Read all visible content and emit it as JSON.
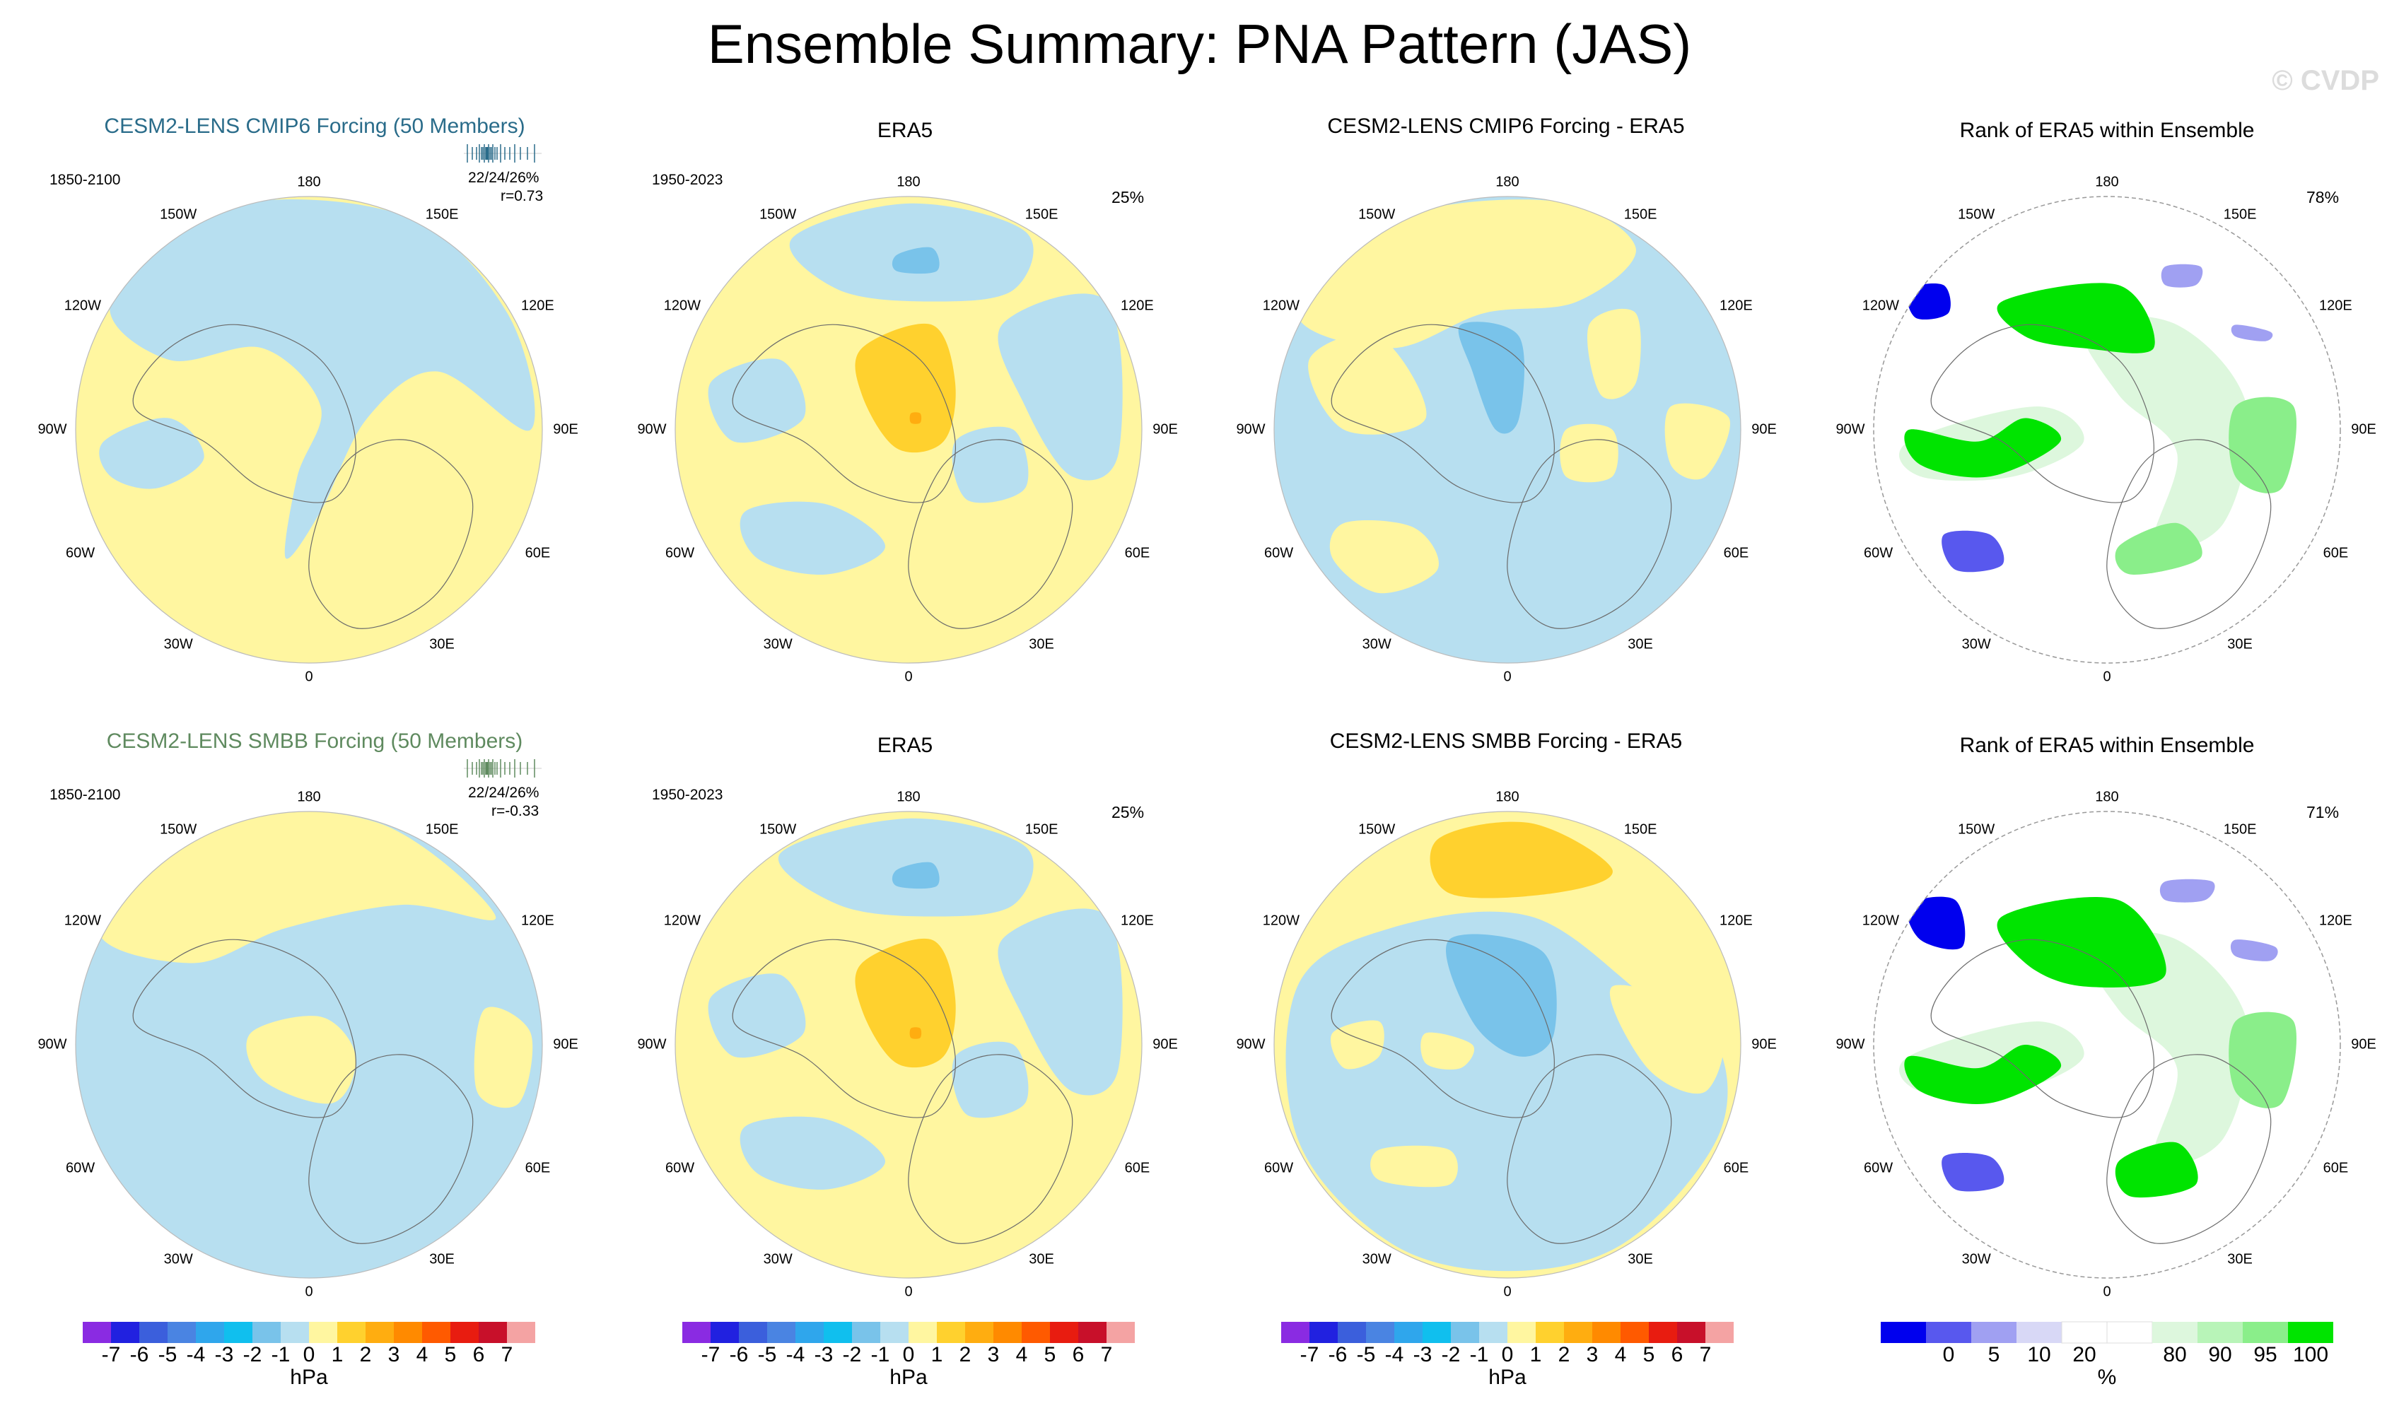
{
  "title": "Ensemble Summary: PNA Pattern (JAS)",
  "watermark": "© CVDP",
  "rows": [
    {
      "model_title": "CESM2-LENS CMIP6 Forcing (50 Members)",
      "model_title_color": "#2a6c8a",
      "model_years": "1850-2100",
      "model_stats_pct": "22/24/26%",
      "model_stats_r": "r=0.73",
      "obs_title": "ERA5",
      "obs_years": "1950-2023",
      "obs_pct": "25%",
      "diff_title": "CESM2-LENS CMIP6 Forcing - ERA5",
      "rank_title": "Rank of ERA5 within Ensemble",
      "rank_pct": "78%"
    },
    {
      "model_title": "CESM2-LENS SMBB Forcing (50 Members)",
      "model_title_color": "#5f8a5f",
      "model_years": "1850-2100",
      "model_stats_pct": "22/24/26%",
      "model_stats_r": "r=-0.33",
      "obs_title": "ERA5",
      "obs_years": "1950-2023",
      "obs_pct": "25%",
      "diff_title": "CESM2-LENS SMBB Forcing - ERA5",
      "rank_title": "Rank of ERA5 within Ensemble",
      "rank_pct": "71%"
    }
  ],
  "lon_labels": {
    "top": "180",
    "bottom": "0",
    "left": "90W",
    "right": "90E",
    "ul1": "150W",
    "ul2": "120W",
    "ur1": "150E",
    "ur2": "120E",
    "ll1": "60W",
    "ll2": "30W",
    "lr1": "60E",
    "lr2": "30E"
  },
  "colorbar": {
    "unit": "hPa",
    "tick_labels": [
      "-7",
      "-6",
      "-5",
      "-4",
      "-3",
      "-2",
      "-1",
      "0",
      "1",
      "2",
      "3",
      "4",
      "5",
      "6",
      "7"
    ],
    "colors": [
      "#8a2be2",
      "#2121e0",
      "#3b5fdc",
      "#4a84e2",
      "#2fa6ec",
      "#10bfee",
      "#79c3ea",
      "#b7dff0",
      "#fff6a0",
      "#ffd12e",
      "#ffad10",
      "#ff8a00",
      "#ff5a00",
      "#e81c10",
      "#c8102a",
      "#f4a3a3"
    ]
  },
  "rank_colorbar": {
    "unit": "%",
    "tick_labels": [
      "0",
      "5",
      "10",
      "20",
      "80",
      "90",
      "95",
      "100"
    ],
    "colors": [
      "#0000ee",
      "#5858ee",
      "#a0a0f2",
      "#d8d8f6",
      "#ffffff",
      "#ffffff",
      "#ddf7dd",
      "#b8f4b8",
      "#8aee8a",
      "#00e400"
    ]
  },
  "icons": {
    "map_panels": "polar-stereographic-map-icon",
    "rug_plot": "ensemble-rug-plot-icon"
  }
}
